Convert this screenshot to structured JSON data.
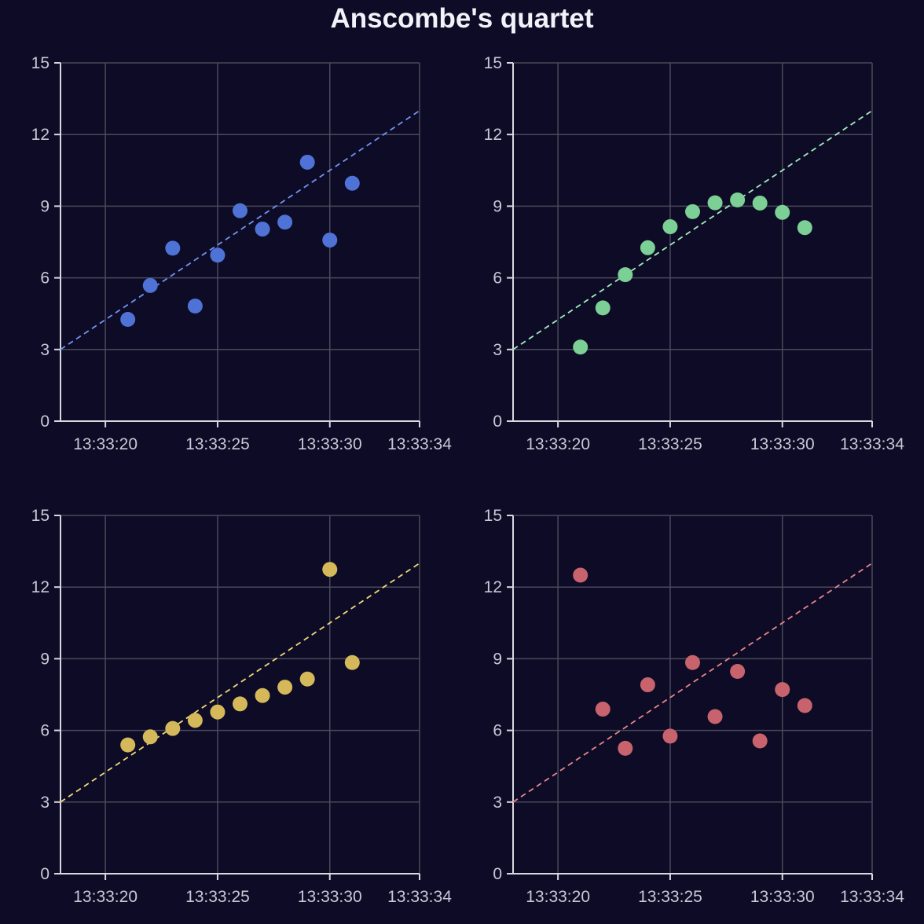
{
  "page": {
    "title": "Anscombe's quartet"
  },
  "colors": {
    "background": "#0d0b26",
    "grid": "#4a4a5a",
    "axis": "#d8d8e0",
    "tick_text": "#c8c8d6",
    "title": "#f2f2f8"
  },
  "chart_data": [
    {
      "type": "scatter",
      "title": "",
      "xlabel": "",
      "ylabel": "",
      "x": [
        "13:33:21",
        "13:33:22",
        "13:33:23",
        "13:33:24",
        "13:33:25",
        "13:33:26",
        "13:33:27",
        "13:33:28",
        "13:33:29",
        "13:33:30",
        "13:33:31"
      ],
      "y": [
        4.26,
        5.68,
        7.24,
        4.82,
        6.95,
        8.81,
        8.04,
        8.33,
        10.84,
        7.58,
        9.96
      ],
      "xlim": [
        "13:33:18",
        "13:33:34"
      ],
      "xticks": [
        "13:33:20",
        "13:33:25",
        "13:33:30",
        "13:33:34"
      ],
      "ylim": [
        0,
        15
      ],
      "yticks": [
        0,
        3,
        6,
        9,
        12,
        15
      ],
      "trend_line": {
        "from": [
          "13:33:18",
          3
        ],
        "to": [
          "13:33:34",
          13
        ],
        "style": "dashed"
      },
      "color": "#4f72d6",
      "line_color": "#6f95f0",
      "grid": true
    },
    {
      "type": "scatter",
      "title": "",
      "xlabel": "",
      "ylabel": "",
      "x": [
        "13:33:21",
        "13:33:22",
        "13:33:23",
        "13:33:24",
        "13:33:25",
        "13:33:26",
        "13:33:27",
        "13:33:28",
        "13:33:29",
        "13:33:30",
        "13:33:31"
      ],
      "y": [
        3.1,
        4.74,
        6.13,
        7.26,
        8.14,
        8.77,
        9.14,
        9.26,
        9.13,
        8.74,
        8.1
      ],
      "xlim": [
        "13:33:18",
        "13:33:34"
      ],
      "xticks": [
        "13:33:20",
        "13:33:25",
        "13:33:30",
        "13:33:34"
      ],
      "ylim": [
        0,
        15
      ],
      "yticks": [
        0,
        3,
        6,
        9,
        12,
        15
      ],
      "trend_line": {
        "from": [
          "13:33:18",
          3
        ],
        "to": [
          "13:33:34",
          13
        ],
        "style": "dashed"
      },
      "color": "#7ccf95",
      "line_color": "#a3edbc",
      "grid": true
    },
    {
      "type": "scatter",
      "title": "",
      "xlabel": "",
      "ylabel": "",
      "x": [
        "13:33:21",
        "13:33:22",
        "13:33:23",
        "13:33:24",
        "13:33:25",
        "13:33:26",
        "13:33:27",
        "13:33:28",
        "13:33:29",
        "13:33:30",
        "13:33:31"
      ],
      "y": [
        5.39,
        5.73,
        6.08,
        6.42,
        6.77,
        7.11,
        7.46,
        7.81,
        8.15,
        12.74,
        8.84
      ],
      "xlim": [
        "13:33:18",
        "13:33:34"
      ],
      "xticks": [
        "13:33:20",
        "13:33:25",
        "13:33:30",
        "13:33:34"
      ],
      "ylim": [
        0,
        15
      ],
      "yticks": [
        0,
        3,
        6,
        9,
        12,
        15
      ],
      "trend_line": {
        "from": [
          "13:33:18",
          3
        ],
        "to": [
          "13:33:34",
          13
        ],
        "style": "dashed"
      },
      "color": "#d4b85a",
      "line_color": "#f0d878",
      "grid": true
    },
    {
      "type": "scatter",
      "title": "",
      "xlabel": "",
      "ylabel": "",
      "x": [
        "13:33:21",
        "13:33:22",
        "13:33:23",
        "13:33:24",
        "13:33:25",
        "13:33:26",
        "13:33:27",
        "13:33:28",
        "13:33:29",
        "13:33:30",
        "13:33:31"
      ],
      "y": [
        12.5,
        6.89,
        5.25,
        7.91,
        5.76,
        8.84,
        6.58,
        8.47,
        5.56,
        7.71,
        7.04
      ],
      "xlim": [
        "13:33:18",
        "13:33:34"
      ],
      "xticks": [
        "13:33:20",
        "13:33:25",
        "13:33:30",
        "13:33:34"
      ],
      "ylim": [
        0,
        15
      ],
      "yticks": [
        0,
        3,
        6,
        9,
        12,
        15
      ],
      "trend_line": {
        "from": [
          "13:33:18",
          3
        ],
        "to": [
          "13:33:34",
          13
        ],
        "style": "dashed"
      },
      "color": "#c8636e",
      "line_color": "#e8858a",
      "grid": true
    }
  ]
}
